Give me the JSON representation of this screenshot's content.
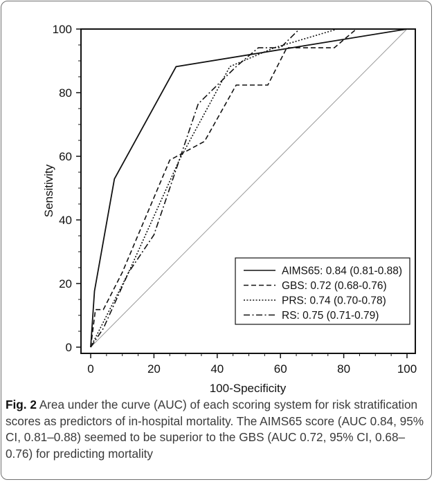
{
  "chart_data": {
    "type": "line",
    "xlabel": "100-Specificity",
    "ylabel": "Sensitivity",
    "xlim": [
      0,
      100
    ],
    "ylim": [
      0,
      100
    ],
    "xticks": [
      0,
      20,
      40,
      60,
      80,
      100
    ],
    "yticks": [
      0,
      20,
      40,
      60,
      80,
      100
    ],
    "grid": false,
    "legend_position": "bottom-right",
    "series": [
      {
        "name": "AIMS65: 0.84 (0.81-0.88)",
        "dash": "solid",
        "x": [
          0,
          1.2,
          7.5,
          27,
          100
        ],
        "y": [
          0,
          17.6,
          52.9,
          88.2,
          100
        ]
      },
      {
        "name": "GBS: 0.72 (0.68-0.76)",
        "dash": "dashed",
        "x": [
          0,
          1.5,
          4,
          10,
          25,
          36,
          46,
          56,
          62,
          77,
          84,
          100
        ],
        "y": [
          0,
          11.8,
          11.8,
          23.5,
          58.8,
          64.7,
          82.4,
          82.4,
          94.1,
          94.1,
          100,
          100
        ]
      },
      {
        "name": "PRS: 0.74 (0.70-0.78)",
        "dash": "dotted",
        "x": [
          0,
          3,
          12,
          28,
          44,
          58,
          78,
          100
        ],
        "y": [
          0,
          5.9,
          23.5,
          58.8,
          88.2,
          94.1,
          100,
          100
        ]
      },
      {
        "name": "RS: 0.75 (0.71-0.79)",
        "dash": "dashdot",
        "x": [
          0,
          4,
          12,
          20,
          28,
          34,
          46,
          53,
          60,
          66,
          100
        ],
        "y": [
          0,
          5.9,
          23.5,
          35.3,
          58.8,
          76.5,
          88.2,
          94.1,
          94.1,
          100,
          100
        ]
      },
      {
        "name": "",
        "dash": "reference",
        "x": [
          0,
          100
        ],
        "y": [
          0,
          100
        ]
      }
    ]
  },
  "caption": {
    "label": "Fig. 2",
    "text": " Area under the curve (AUC) of each scoring system for risk stratification scores as predictors of in-hospital mortality. The AIMS65 score (AUC 0.84, 95% CI, 0.81–0.88) seemed to be superior to the GBS (AUC 0.72, 95% CI, 0.68–0.76) for predicting mortality"
  },
  "colors": {
    "line": "#111111",
    "reference": "#9a9a9a",
    "frame": "#6e6e6e",
    "caption_text": "#3a3a3a"
  }
}
